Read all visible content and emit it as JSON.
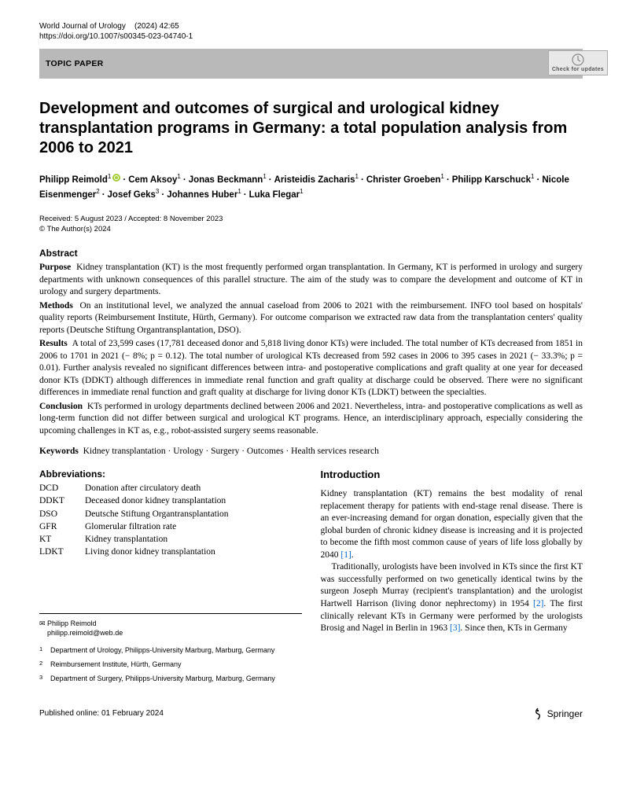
{
  "header": {
    "journal": "World Journal of Urology",
    "issue": "(2024) 42:65",
    "doi": "https://doi.org/10.1007/s00345-023-04740-1",
    "topic_label": "TOPIC PAPER",
    "check_updates": "Check for updates"
  },
  "title": "Development and outcomes of surgical and urological kidney transplantation programs in Germany: a total population analysis from 2006 to 2021",
  "authors": [
    {
      "name": "Philipp Reimold",
      "aff": "1",
      "orcid": true
    },
    {
      "name": "Cem Aksoy",
      "aff": "1"
    },
    {
      "name": "Jonas Beckmann",
      "aff": "1"
    },
    {
      "name": "Aristeidis Zacharis",
      "aff": "1"
    },
    {
      "name": "Christer Groeben",
      "aff": "1"
    },
    {
      "name": "Philipp Karschuck",
      "aff": "1"
    },
    {
      "name": "Nicole Eisenmenger",
      "aff": "2"
    },
    {
      "name": "Josef Geks",
      "aff": "3"
    },
    {
      "name": "Johannes Huber",
      "aff": "1"
    },
    {
      "name": "Luka Flegar",
      "aff": "1"
    }
  ],
  "dates": "Received: 5 August 2023 / Accepted: 8 November 2023",
  "copyright": "© The Author(s) 2024",
  "abstract": {
    "heading": "Abstract",
    "purpose_label": "Purpose",
    "purpose": "Kidney transplantation (KT) is the most frequently performed organ transplantation. In Germany, KT is performed in urology and surgery departments with unknown consequences of this parallel structure. The aim of the study was to compare the development and outcome of KT in urology and surgery departments.",
    "methods_label": "Methods",
    "methods": "On an institutional level, we analyzed the annual caseload from 2006 to 2021 with the reimbursement. INFO tool based on hospitals' quality reports (Reimbursement Institute, Hürth, Germany). For outcome comparison we extracted raw data from the transplantation centers' quality reports (Deutsche Stiftung Organtransplantation, DSO).",
    "results_label": "Results",
    "results": "A total of 23,599 cases (17,781 deceased donor and 5,818 living donor KTs) were included. The total number of KTs decreased from 1851 in 2006 to 1701 in 2021 (− 8%; p = 0.12). The total number of urological KTs decreased from 592 cases in 2006 to 395 cases in 2021 (− 33.3%; p = 0.01). Further analysis revealed no significant differences between intra- and postoperative complications and graft quality at one year for deceased donor KTs (DDKT) although differences in immediate renal function and graft quality at discharge could be observed. There were no significant differences in immediate renal function and graft quality at discharge for living donor KTs (LDKT) between the specialties.",
    "conclusion_label": "Conclusion",
    "conclusion": "KTs performed in urology departments declined between 2006 and 2021. Nevertheless, intra- and postoperative complications as well as long-term function did not differ between surgical and urological KT programs. Hence, an interdisciplinary approach, especially considering the upcoming challenges in KT as, e.g., robot-assisted surgery seems reasonable."
  },
  "keywords": {
    "label": "Keywords",
    "text": "Kidney transplantation · Urology · Surgery · Outcomes · Health services research"
  },
  "abbreviations": {
    "heading": "Abbreviations:",
    "items": [
      {
        "k": "DCD",
        "v": "Donation after circulatory death"
      },
      {
        "k": "DDKT",
        "v": "Deceased donor kidney transplantation"
      },
      {
        "k": "DSO",
        "v": "Deutsche Stiftung Organtransplantation"
      },
      {
        "k": "GFR",
        "v": "Glomerular filtration rate"
      },
      {
        "k": "KT",
        "v": "Kidney transplantation"
      },
      {
        "k": "LDKT",
        "v": "Living donor kidney transplantation"
      }
    ]
  },
  "correspondence": {
    "name": "Philipp Reimold",
    "email": "philipp.reimold@web.de"
  },
  "affiliations": [
    {
      "n": "1",
      "text": "Department of Urology, Philipps-University Marburg, Marburg, Germany"
    },
    {
      "n": "2",
      "text": "Reimbursement Institute, Hürth, Germany"
    },
    {
      "n": "3",
      "text": "Department of Surgery, Philipps-University Marburg, Marburg, Germany"
    }
  ],
  "introduction": {
    "heading": "Introduction",
    "p1": "Kidney transplantation (KT) remains the best modality of renal replacement therapy for patients with end-stage renal disease. There is an ever-increasing demand for organ donation, especially given that the global burden of chronic kidney disease is increasing and it is projected to become the fifth most common cause of years of life loss globally by 2040 ",
    "ref1": "[1]",
    "p1_end": ".",
    "p2": "Traditionally, urologists have been involved in KTs since the first KT was successfully performed on two genetically identical twins by the surgeon Joseph Murray (recipient's transplantation) and the urologist Hartwell Harrison (living donor nephrectomy) in 1954 ",
    "ref2": "[2]",
    "p2_mid": ". The first clinically relevant KTs in Germany were performed by the urologists Brosig and Nagel in Berlin in 1963 ",
    "ref3": "[3]",
    "p2_end": ". Since then, KTs in Germany"
  },
  "footer": {
    "published": "Published online: 01 February 2024",
    "publisher": "Springer"
  }
}
